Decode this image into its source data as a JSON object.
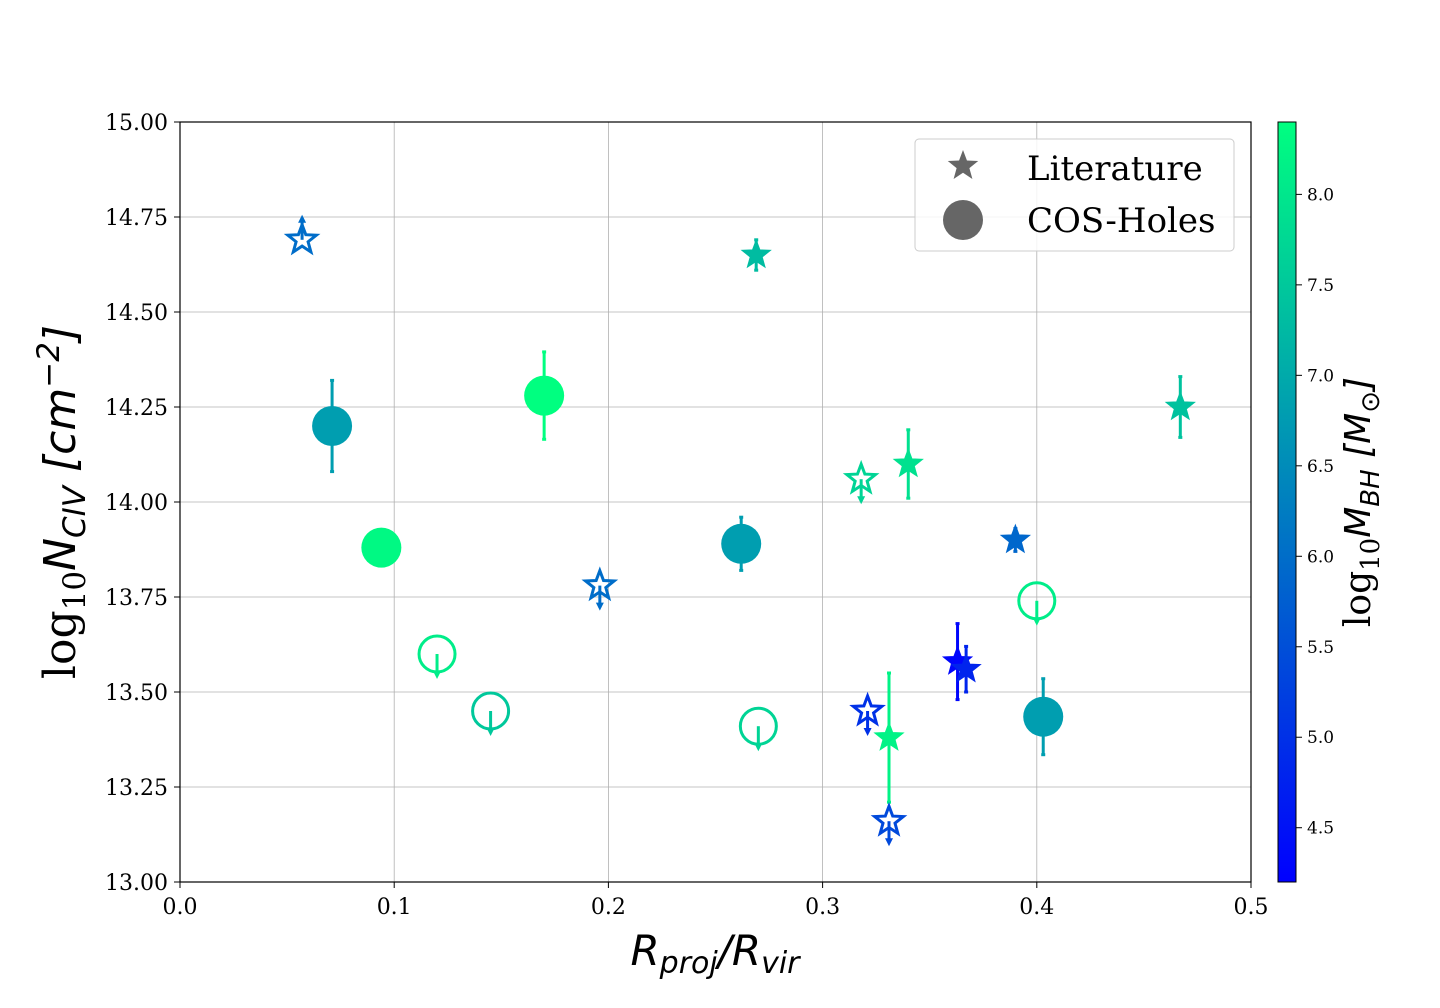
{
  "chart_data": {
    "type": "scatter",
    "xlabel": "R_proj/R_vir",
    "ylabel": "log10 N_CIV [cm^-2]",
    "xlim": [
      0.0,
      0.5
    ],
    "ylim": [
      13.0,
      15.0
    ],
    "x_ticks": [
      "0.0",
      "0.1",
      "0.2",
      "0.3",
      "0.4",
      "0.5"
    ],
    "y_ticks": [
      "13.00",
      "13.25",
      "13.50",
      "13.75",
      "14.00",
      "14.25",
      "14.50",
      "14.75",
      "15.00"
    ],
    "grid": true,
    "legend_position": "top-right",
    "legend": [
      {
        "label": "Literature",
        "marker": "star"
      },
      {
        "label": "COS-Holes",
        "marker": "circle"
      }
    ],
    "colorbar": {
      "label": "log10 M_BH [M_sun]",
      "range": [
        4.2,
        8.4
      ],
      "ticks": [
        "4.5",
        "5.0",
        "5.5",
        "6.0",
        "6.5",
        "7.0",
        "7.5",
        "8.0"
      ],
      "colormap": "winter"
    },
    "series": [
      {
        "name": "Literature",
        "marker": "star",
        "points": [
          {
            "x": 0.057,
            "y": 14.69,
            "mbh": 6.0,
            "filled": false,
            "limit": "lower"
          },
          {
            "x": 0.196,
            "y": 13.78,
            "mbh": 6.0,
            "filled": false,
            "limit": "upper"
          },
          {
            "x": 0.269,
            "y": 14.65,
            "err": 0.04,
            "mbh": 7.3,
            "filled": true,
            "limit": null
          },
          {
            "x": 0.318,
            "y": 14.06,
            "mbh": 7.7,
            "filled": false,
            "limit": "upper"
          },
          {
            "x": 0.321,
            "y": 13.45,
            "mbh": 5.0,
            "filled": false,
            "limit": "upper"
          },
          {
            "x": 0.331,
            "y": 13.38,
            "err": 0.17,
            "mbh": 8.2,
            "filled": true,
            "limit": null
          },
          {
            "x": 0.331,
            "y": 13.16,
            "mbh": 5.4,
            "filled": false,
            "limit": "upper"
          },
          {
            "x": 0.34,
            "y": 14.1,
            "err": 0.09,
            "mbh": 7.9,
            "filled": true,
            "limit": null
          },
          {
            "x": 0.363,
            "y": 13.58,
            "err": 0.1,
            "mbh": 4.3,
            "filled": true,
            "limit": null
          },
          {
            "x": 0.367,
            "y": 13.56,
            "err": 0.06,
            "mbh": 4.8,
            "filled": true,
            "limit": null
          },
          {
            "x": 0.39,
            "y": 13.9,
            "err": 0.03,
            "mbh": 5.9,
            "filled": true,
            "limit": null
          },
          {
            "x": 0.467,
            "y": 14.25,
            "err": 0.08,
            "mbh": 7.4,
            "filled": true,
            "limit": null
          }
        ]
      },
      {
        "name": "COS-Holes",
        "marker": "circle",
        "points": [
          {
            "x": 0.071,
            "y": 14.2,
            "err": 0.12,
            "mbh": 6.8,
            "filled": true,
            "limit": null
          },
          {
            "x": 0.094,
            "y": 13.88,
            "mbh": 8.3,
            "filled": true,
            "limit": null
          },
          {
            "x": 0.12,
            "y": 13.6,
            "mbh": 8.1,
            "filled": false,
            "limit": "upper"
          },
          {
            "x": 0.145,
            "y": 13.45,
            "mbh": 7.5,
            "filled": false,
            "limit": "upper"
          },
          {
            "x": 0.17,
            "y": 14.28,
            "err": 0.115,
            "mbh": 8.4,
            "filled": true,
            "limit": null
          },
          {
            "x": 0.262,
            "y": 13.89,
            "err": 0.07,
            "mbh": 6.8,
            "filled": true,
            "limit": null
          },
          {
            "x": 0.27,
            "y": 13.41,
            "mbh": 7.7,
            "filled": false,
            "limit": "upper"
          },
          {
            "x": 0.4,
            "y": 13.74,
            "mbh": 8.1,
            "filled": false,
            "limit": "upper"
          },
          {
            "x": 0.403,
            "y": 13.435,
            "err": 0.1,
            "mbh": 6.8,
            "filled": true,
            "limit": null
          }
        ]
      }
    ]
  }
}
